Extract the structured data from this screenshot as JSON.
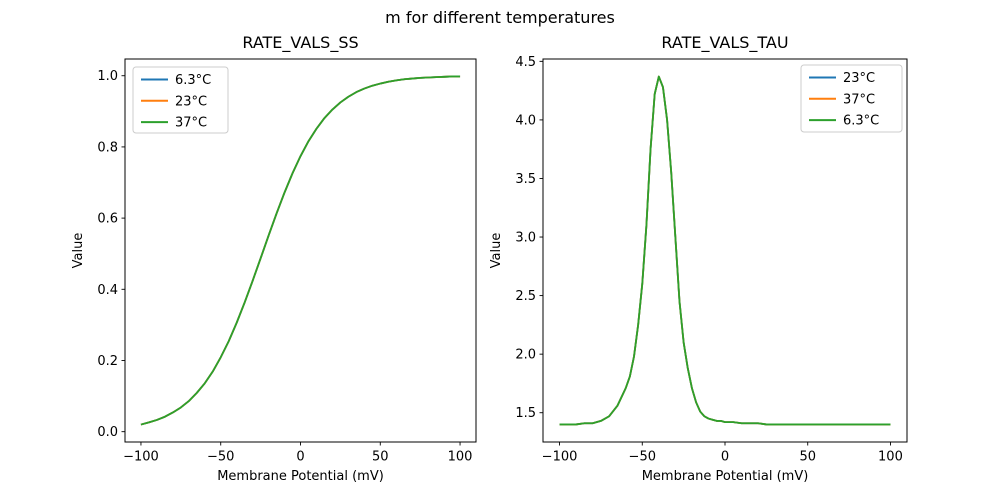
{
  "figure": {
    "title": "m for different temperatures",
    "background": "#ffffff"
  },
  "palette": {
    "blue": "#1f77b4",
    "orange": "#ff7f0e",
    "green": "#2ca02c",
    "axis": "#000000",
    "legend_edge": "#cccccc",
    "background": "#ffffff"
  },
  "chart_data": [
    {
      "type": "line",
      "title": "RATE_VALS_SS",
      "xlabel": "Membrane Potential (mV)",
      "ylabel": "Value",
      "xlim": [
        -110,
        110
      ],
      "ylim": [
        -0.029,
        1.047
      ],
      "xticks": [
        -100,
        -50,
        0,
        50,
        100
      ],
      "xtick_labels": [
        "−100",
        "−50",
        "0",
        "50",
        "100"
      ],
      "yticks": [
        0.0,
        0.2,
        0.4,
        0.6,
        0.8,
        1.0
      ],
      "ytick_labels": [
        "0.0",
        "0.2",
        "0.4",
        "0.6",
        "0.8",
        "1.0"
      ],
      "grid": false,
      "legend_position": "upper-left",
      "note": "All three temperature curves overlap exactly; only the last-drawn (green) is visible.",
      "x": [
        -100,
        -95,
        -90,
        -85,
        -80,
        -75,
        -70,
        -65,
        -60,
        -55,
        -50,
        -45,
        -40,
        -35,
        -30,
        -25,
        -20,
        -15,
        -10,
        -5,
        0,
        5,
        10,
        15,
        20,
        25,
        30,
        35,
        40,
        45,
        50,
        55,
        60,
        65,
        70,
        75,
        80,
        85,
        90,
        95,
        100
      ],
      "series": [
        {
          "name": "6.3°C",
          "color": "#1f77b4",
          "values": [
            0.02,
            0.026,
            0.033,
            0.042,
            0.054,
            0.068,
            0.086,
            0.109,
            0.136,
            0.169,
            0.209,
            0.254,
            0.306,
            0.363,
            0.424,
            0.487,
            0.551,
            0.613,
            0.672,
            0.726,
            0.774,
            0.816,
            0.851,
            0.881,
            0.905,
            0.925,
            0.941,
            0.954,
            0.964,
            0.972,
            0.978,
            0.983,
            0.987,
            0.99,
            0.992,
            0.994,
            0.995,
            0.996,
            0.997,
            0.998,
            0.998
          ]
        },
        {
          "name": "23°C",
          "color": "#ff7f0e",
          "values": [
            0.02,
            0.026,
            0.033,
            0.042,
            0.054,
            0.068,
            0.086,
            0.109,
            0.136,
            0.169,
            0.209,
            0.254,
            0.306,
            0.363,
            0.424,
            0.487,
            0.551,
            0.613,
            0.672,
            0.726,
            0.774,
            0.816,
            0.851,
            0.881,
            0.905,
            0.925,
            0.941,
            0.954,
            0.964,
            0.972,
            0.978,
            0.983,
            0.987,
            0.99,
            0.992,
            0.994,
            0.995,
            0.996,
            0.997,
            0.998,
            0.998
          ]
        },
        {
          "name": "37°C",
          "color": "#2ca02c",
          "values": [
            0.02,
            0.026,
            0.033,
            0.042,
            0.054,
            0.068,
            0.086,
            0.109,
            0.136,
            0.169,
            0.209,
            0.254,
            0.306,
            0.363,
            0.424,
            0.487,
            0.551,
            0.613,
            0.672,
            0.726,
            0.774,
            0.816,
            0.851,
            0.881,
            0.905,
            0.925,
            0.941,
            0.954,
            0.964,
            0.972,
            0.978,
            0.983,
            0.987,
            0.99,
            0.992,
            0.994,
            0.995,
            0.996,
            0.997,
            0.998,
            0.998
          ]
        }
      ]
    },
    {
      "type": "line",
      "title": "RATE_VALS_TAU",
      "xlabel": "Membrane Potential (mV)",
      "ylabel": "Value",
      "xlim": [
        -110,
        110
      ],
      "ylim": [
        1.25,
        4.52
      ],
      "xticks": [
        -100,
        -50,
        0,
        50,
        100
      ],
      "xtick_labels": [
        "−100",
        "−50",
        "0",
        "50",
        "100"
      ],
      "yticks": [
        1.5,
        2.0,
        2.5,
        3.0,
        3.5,
        4.0,
        4.5
      ],
      "ytick_labels": [
        "1.5",
        "2.0",
        "2.5",
        "3.0",
        "3.5",
        "4.0",
        "4.5"
      ],
      "grid": false,
      "legend_position": "upper-right",
      "note": "All three temperature curves overlap exactly; peak ≈ 4.37 at −40 mV, baseline ≈ 1.40.",
      "x": [
        -100,
        -95,
        -90,
        -85,
        -80,
        -75,
        -70,
        -65,
        -60,
        -57.5,
        -55,
        -52.5,
        -50,
        -47.5,
        -45,
        -42.5,
        -40,
        -37.5,
        -35,
        -32.5,
        -30,
        -27.5,
        -25,
        -22.5,
        -20,
        -17.5,
        -15,
        -12.5,
        -10,
        -7.5,
        -5,
        -2.5,
        0,
        5,
        10,
        15,
        20,
        25,
        30,
        35,
        40,
        45,
        50,
        55,
        60,
        65,
        70,
        75,
        80,
        85,
        90,
        95,
        100
      ],
      "series": [
        {
          "name": "23°C",
          "color": "#1f77b4",
          "values": [
            1.4,
            1.4,
            1.4,
            1.41,
            1.41,
            1.43,
            1.47,
            1.56,
            1.71,
            1.81,
            1.98,
            2.25,
            2.6,
            3.1,
            3.75,
            4.22,
            4.37,
            4.28,
            4.0,
            3.55,
            3.0,
            2.45,
            2.1,
            1.88,
            1.71,
            1.59,
            1.51,
            1.47,
            1.45,
            1.44,
            1.43,
            1.43,
            1.42,
            1.42,
            1.41,
            1.41,
            1.41,
            1.4,
            1.4,
            1.4,
            1.4,
            1.4,
            1.4,
            1.4,
            1.4,
            1.4,
            1.4,
            1.4,
            1.4,
            1.4,
            1.4,
            1.4,
            1.4
          ]
        },
        {
          "name": "37°C",
          "color": "#ff7f0e",
          "values": [
            1.4,
            1.4,
            1.4,
            1.41,
            1.41,
            1.43,
            1.47,
            1.56,
            1.71,
            1.81,
            1.98,
            2.25,
            2.6,
            3.1,
            3.75,
            4.22,
            4.37,
            4.28,
            4.0,
            3.55,
            3.0,
            2.45,
            2.1,
            1.88,
            1.71,
            1.59,
            1.51,
            1.47,
            1.45,
            1.44,
            1.43,
            1.43,
            1.42,
            1.42,
            1.41,
            1.41,
            1.41,
            1.4,
            1.4,
            1.4,
            1.4,
            1.4,
            1.4,
            1.4,
            1.4,
            1.4,
            1.4,
            1.4,
            1.4,
            1.4,
            1.4,
            1.4,
            1.4
          ]
        },
        {
          "name": "6.3°C",
          "color": "#2ca02c",
          "values": [
            1.4,
            1.4,
            1.4,
            1.41,
            1.41,
            1.43,
            1.47,
            1.56,
            1.71,
            1.81,
            1.98,
            2.25,
            2.6,
            3.1,
            3.75,
            4.22,
            4.37,
            4.28,
            4.0,
            3.55,
            3.0,
            2.45,
            2.1,
            1.88,
            1.71,
            1.59,
            1.51,
            1.47,
            1.45,
            1.44,
            1.43,
            1.43,
            1.42,
            1.42,
            1.41,
            1.41,
            1.41,
            1.4,
            1.4,
            1.4,
            1.4,
            1.4,
            1.4,
            1.4,
            1.4,
            1.4,
            1.4,
            1.4,
            1.4,
            1.4,
            1.4,
            1.4,
            1.4
          ]
        }
      ]
    }
  ]
}
